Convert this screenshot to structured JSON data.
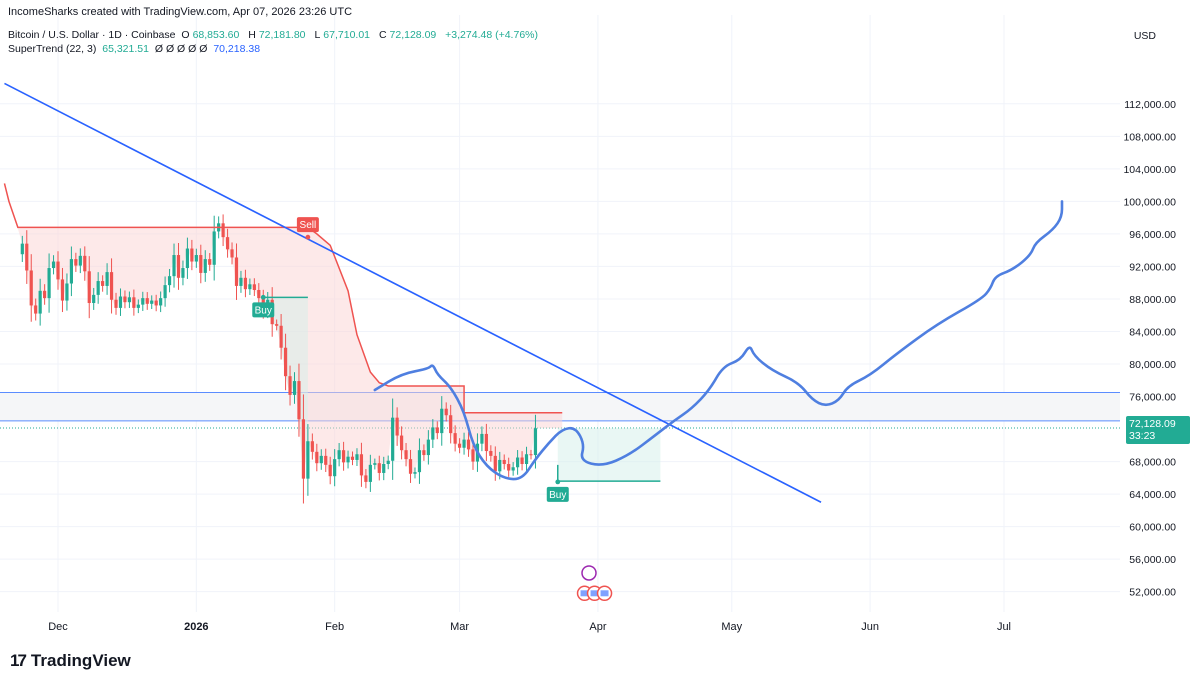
{
  "header": "IncomeSharks created with TradingView.com, Apr 07, 2026 23:26 UTC",
  "legend": {
    "symbol": "Bitcoin / U.S. Dollar · 1D · Coinbase",
    "open_label": "O",
    "open": "68,853.60",
    "high_label": "H",
    "high": "72,181.80",
    "low_label": "L",
    "low": "67,710.01",
    "close_label": "C",
    "close": "72,128.09",
    "change": "+3,274.48 (+4.76%)",
    "indicator": "SuperTrend (22, 3)",
    "ind_v1": "65,321.51",
    "ind_v2": "Ø Ø Ø Ø Ø",
    "ind_v3": "70,218.38"
  },
  "currency": "USD",
  "price_tag": {
    "price": "72,128.09",
    "countdown": "33:23"
  },
  "logo": {
    "mark": "17",
    "text": "TradingView"
  },
  "colors": {
    "up": "#22ab94",
    "down": "#ef5350",
    "trend": "#2962ff",
    "drawn": "#4f7fe0"
  },
  "chart_data": {
    "type": "candlestick",
    "y_ticks": [
      {
        "v": 112000,
        "label": "112,000.00"
      },
      {
        "v": 108000,
        "label": "108,000.00"
      },
      {
        "v": 104000,
        "label": "104,000.00"
      },
      {
        "v": 100000,
        "label": "100,000.00"
      },
      {
        "v": 96000,
        "label": "96,000.00"
      },
      {
        "v": 92000,
        "label": "92,000.00"
      },
      {
        "v": 88000,
        "label": "88,000.00"
      },
      {
        "v": 84000,
        "label": "84,000.00"
      },
      {
        "v": 80000,
        "label": "80,000.00"
      },
      {
        "v": 76000,
        "label": "76,000.00"
      },
      {
        "v": 68000,
        "label": "68,000.00"
      },
      {
        "v": 64000,
        "label": "64,000.00"
      },
      {
        "v": 60000,
        "label": "60,000.00"
      },
      {
        "v": 56000,
        "label": "56,000.00"
      },
      {
        "v": 52000,
        "label": "52,000.00"
      }
    ],
    "x_ticks": [
      {
        "day": 8,
        "label": "Dec",
        "bold": false
      },
      {
        "day": 39,
        "label": "2026",
        "bold": true
      },
      {
        "day": 70,
        "label": "Feb",
        "bold": false
      },
      {
        "day": 98,
        "label": "Mar",
        "bold": false
      },
      {
        "day": 129,
        "label": "Apr",
        "bold": false
      },
      {
        "day": 159,
        "label": "May",
        "bold": false
      },
      {
        "day": 190,
        "label": "Jun",
        "bold": false
      },
      {
        "day": 220,
        "label": "Jul",
        "bold": false
      }
    ],
    "ylim": [
      49500,
      118000
    ],
    "xlim": [
      -5,
      246
    ],
    "zone": [
      73000,
      76500
    ],
    "dotted_level": 72128,
    "signals": [
      {
        "label": "Buy",
        "day": 54,
        "price": 88200,
        "kind": "buy"
      },
      {
        "label": "Sell",
        "day": 64,
        "price": 95600,
        "kind": "sell"
      },
      {
        "label": "Buy",
        "day": 120,
        "price": 65500,
        "kind": "buy"
      }
    ],
    "closes": [
      94800,
      91500,
      87200,
      86200,
      89000,
      88100,
      91800,
      92600,
      90400,
      87800,
      89900,
      92900,
      92100,
      93300,
      91400,
      87500,
      88500,
      90200,
      89600,
      91300,
      87900,
      86900,
      88300,
      87600,
      88200,
      86900,
      87300,
      88100,
      87400,
      87800,
      87200,
      88100,
      89700,
      90800,
      93400,
      90600,
      91800,
      94200,
      92600,
      93400,
      91200,
      92900,
      92200,
      96300,
      97300,
      95600,
      94100,
      93100,
      89600,
      90600,
      89200,
      89800,
      89100,
      88100,
      86600,
      87900,
      84900,
      84700,
      82000,
      78500,
      76200,
      77900,
      73200,
      65900,
      70500,
      69200,
      67800,
      68700,
      67600,
      66200,
      68300,
      69400,
      67900,
      68600,
      68200,
      68900,
      66300,
      65500,
      67600,
      67800,
      66600,
      67700,
      68100,
      73400,
      71200,
      69400,
      68300,
      66500,
      66700,
      69400,
      68800,
      70700,
      72200,
      71500,
      74500,
      73700,
      71500,
      70200,
      69700,
      70700,
      69500,
      68000,
      70200,
      71400,
      69300,
      68700,
      66800,
      68200,
      67700,
      66900,
      67300,
      68500,
      67700,
      68900,
      68800,
      72100
    ],
    "trend_line": {
      "from": {
        "day": -4,
        "price": 114500
      },
      "to": {
        "day": 179,
        "price": 63000
      }
    },
    "supertrend_up_1": [
      {
        "day": 54,
        "price": 88200
      },
      {
        "day": 64,
        "price": 88200
      }
    ],
    "supertrend_up_2": [
      {
        "day": 120,
        "price": 67600
      },
      {
        "day": 120,
        "price": 65600
      },
      {
        "day": 143,
        "price": 65600
      }
    ],
    "supertrend_down": [
      {
        "day": -4,
        "price": 102200
      },
      {
        "day": -3,
        "price": 100000
      },
      {
        "day": -1,
        "price": 96800
      },
      {
        "day": 64,
        "price": 96800
      },
      {
        "day": 66,
        "price": 96000
      },
      {
        "day": 69,
        "price": 94600
      },
      {
        "day": 73,
        "price": 89000
      },
      {
        "day": 75,
        "price": 83600
      },
      {
        "day": 78,
        "price": 79000
      },
      {
        "day": 80,
        "price": 77700
      },
      {
        "day": 82,
        "price": 77300
      },
      {
        "day": 99,
        "price": 77300
      },
      {
        "day": 99,
        "price": 74000
      },
      {
        "day": 121,
        "price": 74000
      }
    ],
    "drawn_path": [
      {
        "day": 79,
        "price": 76800
      },
      {
        "day": 85,
        "price": 78800
      },
      {
        "day": 91,
        "price": 79400
      },
      {
        "day": 92,
        "price": 80000
      },
      {
        "day": 93,
        "price": 78700
      },
      {
        "day": 96,
        "price": 77200
      },
      {
        "day": 99,
        "price": 74200
      },
      {
        "day": 101,
        "price": 70000
      },
      {
        "day": 104,
        "price": 67400
      },
      {
        "day": 108,
        "price": 65900
      },
      {
        "day": 112,
        "price": 65800
      },
      {
        "day": 115,
        "price": 68300
      },
      {
        "day": 118,
        "price": 70300
      },
      {
        "day": 121,
        "price": 72000
      },
      {
        "day": 124,
        "price": 72200
      },
      {
        "day": 126,
        "price": 70100
      },
      {
        "day": 125,
        "price": 68100
      },
      {
        "day": 130,
        "price": 67400
      },
      {
        "day": 136,
        "price": 68800
      },
      {
        "day": 142,
        "price": 71300
      },
      {
        "day": 146,
        "price": 73000
      },
      {
        "day": 150,
        "price": 74500
      },
      {
        "day": 154,
        "price": 76800
      },
      {
        "day": 157,
        "price": 79700
      },
      {
        "day": 161,
        "price": 80500
      },
      {
        "day": 163,
        "price": 82400
      },
      {
        "day": 164,
        "price": 81000
      },
      {
        "day": 168,
        "price": 79200
      },
      {
        "day": 174,
        "price": 77700
      },
      {
        "day": 177,
        "price": 75600
      },
      {
        "day": 180,
        "price": 74800
      },
      {
        "day": 183,
        "price": 75500
      },
      {
        "day": 185,
        "price": 77300
      },
      {
        "day": 190,
        "price": 78600
      },
      {
        "day": 196,
        "price": 81300
      },
      {
        "day": 205,
        "price": 84900
      },
      {
        "day": 215,
        "price": 88000
      },
      {
        "day": 217,
        "price": 89300
      },
      {
        "day": 218,
        "price": 90800
      },
      {
        "day": 222,
        "price": 91600
      },
      {
        "day": 226,
        "price": 93400
      },
      {
        "day": 227,
        "price": 94900
      },
      {
        "day": 231,
        "price": 96500
      },
      {
        "day": 233,
        "price": 98100
      },
      {
        "day": 233,
        "price": 100000
      }
    ]
  }
}
